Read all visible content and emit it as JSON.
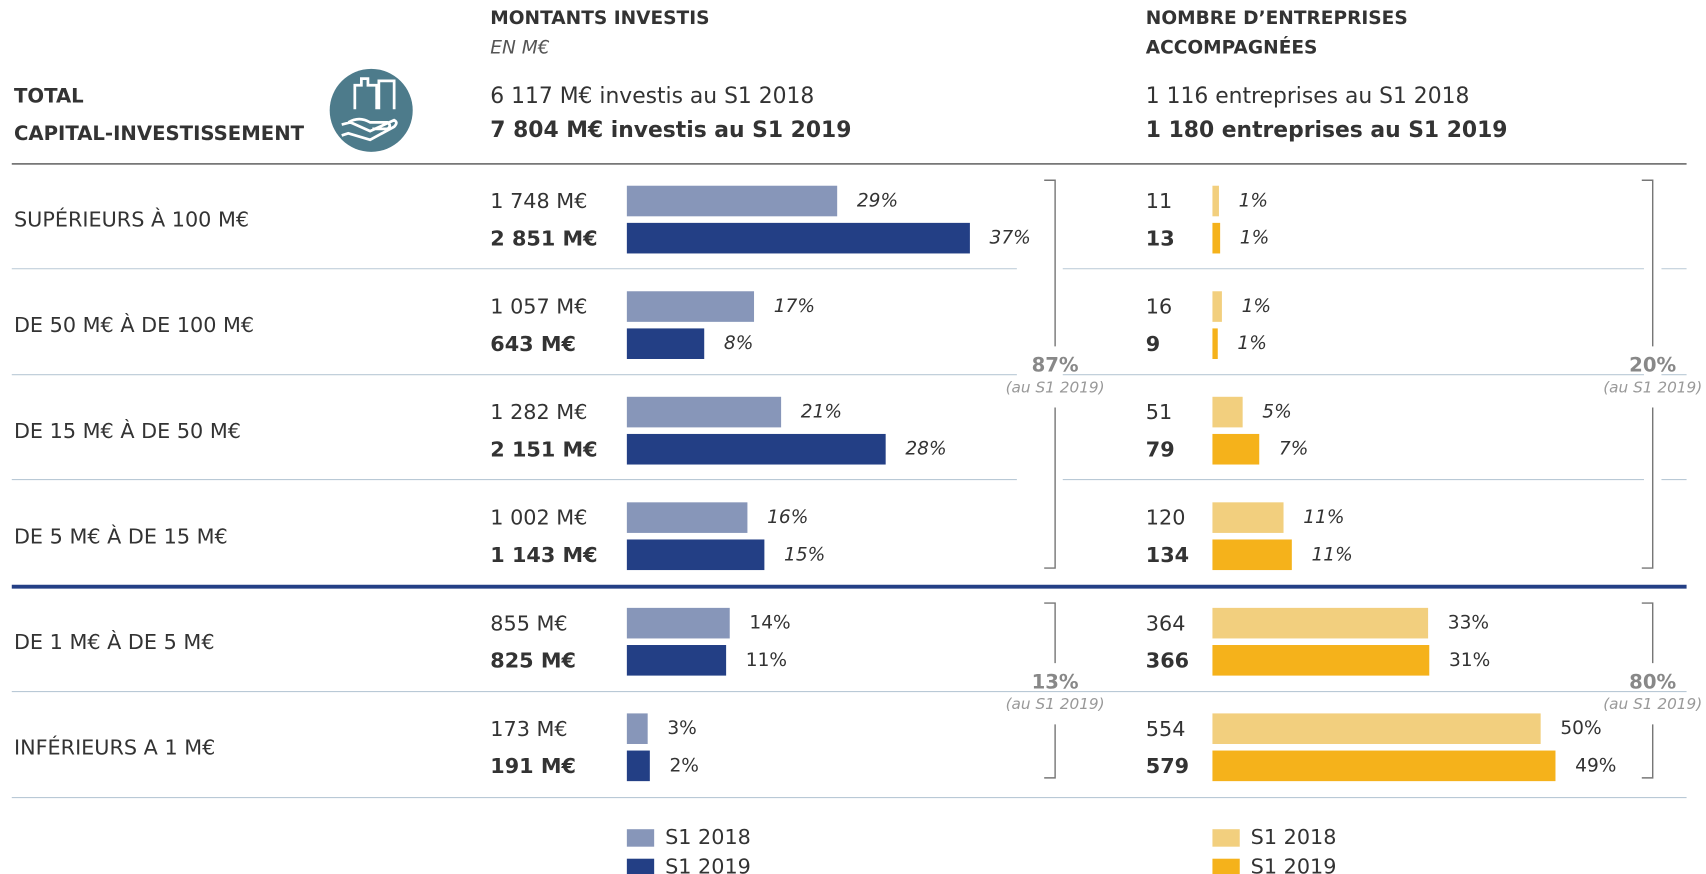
{
  "header": {
    "total": [
      "TOTAL",
      "CAPITAL-INVESTISSEMENT"
    ]
  },
  "chart_data": [
    {
      "type": "bar",
      "title": [
        "MONTANTS INVESTIS"
      ],
      "subtitle": "EN M€",
      "summary": [
        "6 117 M€ investis au S1 2018",
        "7 804 M€ investis au S1 2019"
      ],
      "categories": [
        "SUPÉRIEURS À 100 M€",
        "DE 50 M€ À DE 100 M€",
        "DE 15 M€ À DE 50 M€",
        "DE 5 M€ À DE 15 M€",
        "DE 1 M€ À DE 5 M€",
        "INFÉRIEURS A 1 M€"
      ],
      "series": [
        {
          "name": "S1 2018",
          "color": "#8796b9",
          "values": [
            1748,
            1057,
            1282,
            1002,
            855,
            173
          ],
          "value_labels": [
            "1 748 M€",
            "1 057 M€",
            "1 282 M€",
            "1 002 M€",
            "855 M€",
            "173 M€"
          ],
          "share_labels": [
            "29%",
            "17%",
            "21%",
            "16%",
            "14%",
            "3%"
          ]
        },
        {
          "name": "S1 2019",
          "color": "#233f85",
          "values": [
            2851,
            643,
            2151,
            1143,
            825,
            191
          ],
          "value_labels": [
            "2 851 M€",
            "643 M€",
            "2 151 M€",
            "1 143 M€",
            "825 M€",
            "191 M€"
          ],
          "share_labels": [
            "37%",
            "8%",
            "28%",
            "15%",
            "11%",
            "2%"
          ]
        }
      ],
      "groups": [
        {
          "label": "87%",
          "note": "(au S1 2019)"
        },
        {
          "label": "13%",
          "note": "(au S1 2019)"
        }
      ]
    },
    {
      "type": "bar",
      "title": [
        "NOMBRE D’ENTREPRISES",
        "ACCOMPAGNÉES"
      ],
      "summary": [
        "1 116 entreprises au S1 2018",
        "1 180 entreprises au S1 2019"
      ],
      "series": [
        {
          "name": "S1 2018",
          "color": "#f2cf7e",
          "values": [
            11,
            16,
            51,
            120,
            364,
            554
          ],
          "share_labels": [
            "1%",
            "1%",
            "5%",
            "11%",
            "33%",
            "50%"
          ]
        },
        {
          "name": "S1 2019",
          "color": "#f5b21b",
          "values": [
            13,
            9,
            79,
            134,
            366,
            579
          ],
          "share_labels": [
            "1%",
            "1%",
            "7%",
            "11%",
            "31%",
            "49%"
          ]
        }
      ],
      "groups": [
        {
          "label": "20%",
          "note": "(au S1 2019)"
        },
        {
          "label": "80%",
          "note": "(au S1 2019)"
        }
      ]
    }
  ]
}
